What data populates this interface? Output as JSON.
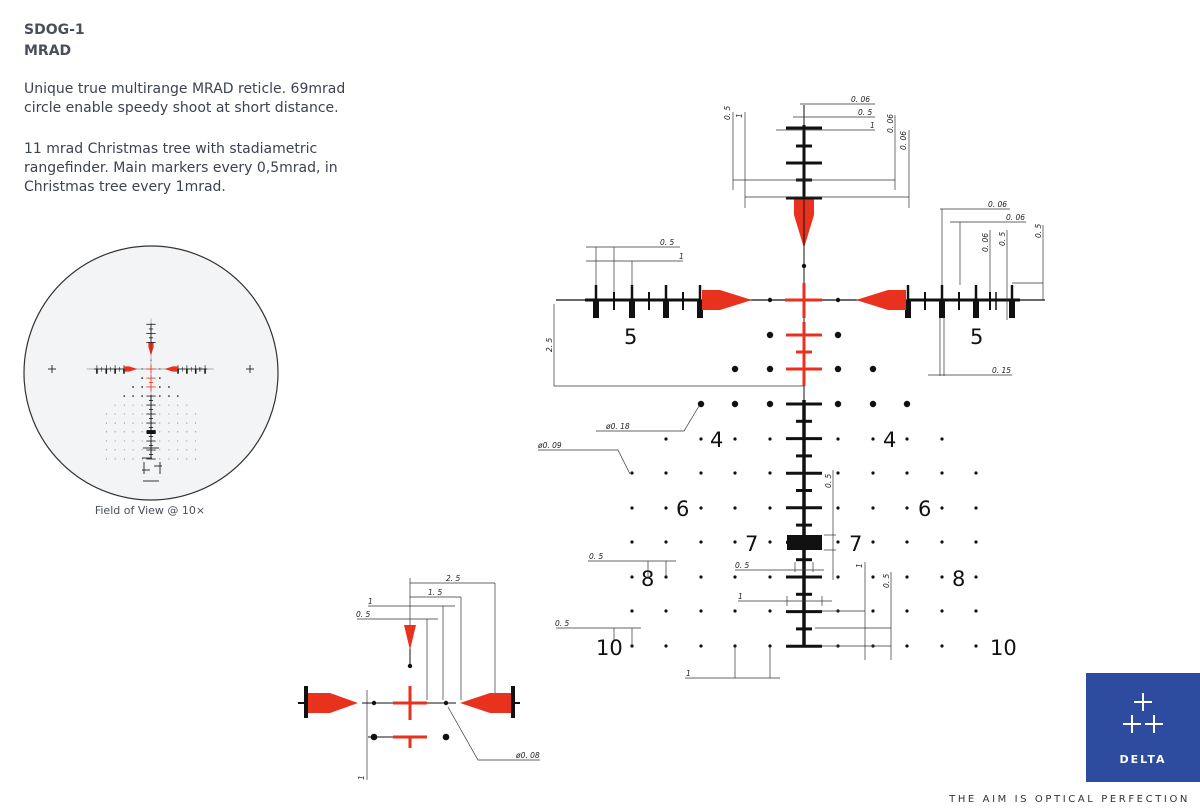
{
  "header": {
    "model": "SDOG-1",
    "unit": "MRAD"
  },
  "description": [
    "Unique true multirange MRAD reticle. 69mrad circle enable speedy shoot at short distance.",
    "11 mrad Christmas tree with stadiametric rangefinder. Main markers every 0,5mrad, in Christmas tree every 1mrad."
  ],
  "fov_caption": "Field of View @ 10×",
  "reticle": {
    "range_numbers": {
      "r5": "5",
      "r4": "4",
      "r6": "6",
      "r7": "7",
      "r8": "8",
      "r10": "10"
    },
    "dimensions": {
      "top_006": "0. 06",
      "top_05": "0. 5",
      "top_1": "1",
      "top_v05": "0. 5",
      "top_v1": "1",
      "top_v006a": "0. 06",
      "top_v006b": "0. 06",
      "right_006a": "0. 06",
      "right_006b": "0. 06",
      "right_v006": "0. 06",
      "right_v05a": "0. 5",
      "right_v05b": "0. 5",
      "right_015": "0. 15",
      "left_05": "0. 5",
      "left_1": "1",
      "left_25": "2. 5",
      "dia_018": "ø0. 18",
      "dia_009": "ø0. 09",
      "tree_v05": "0. 5",
      "row8_05": "0. 5",
      "box_05": "0. 5",
      "tree_1": "1",
      "tree_v1": "1",
      "tree_v05b": "0. 5",
      "row10_05": "0. 5",
      "bottom_1": "1",
      "detail_25": "2. 5",
      "detail_15": "1. 5",
      "detail_1": "1",
      "detail_05": "0. 5",
      "detail_v1": "1",
      "dia_008": "ø0. 08"
    }
  },
  "colors": {
    "reticle_red": "#e8321e",
    "reticle_black": "#111111",
    "brand_blue": "#2d4b9f"
  },
  "logo": {
    "brand": "DELTA",
    "icon": "three-crosses-icon"
  },
  "tagline": "THE AIM IS OPTICAL PERFECTION"
}
